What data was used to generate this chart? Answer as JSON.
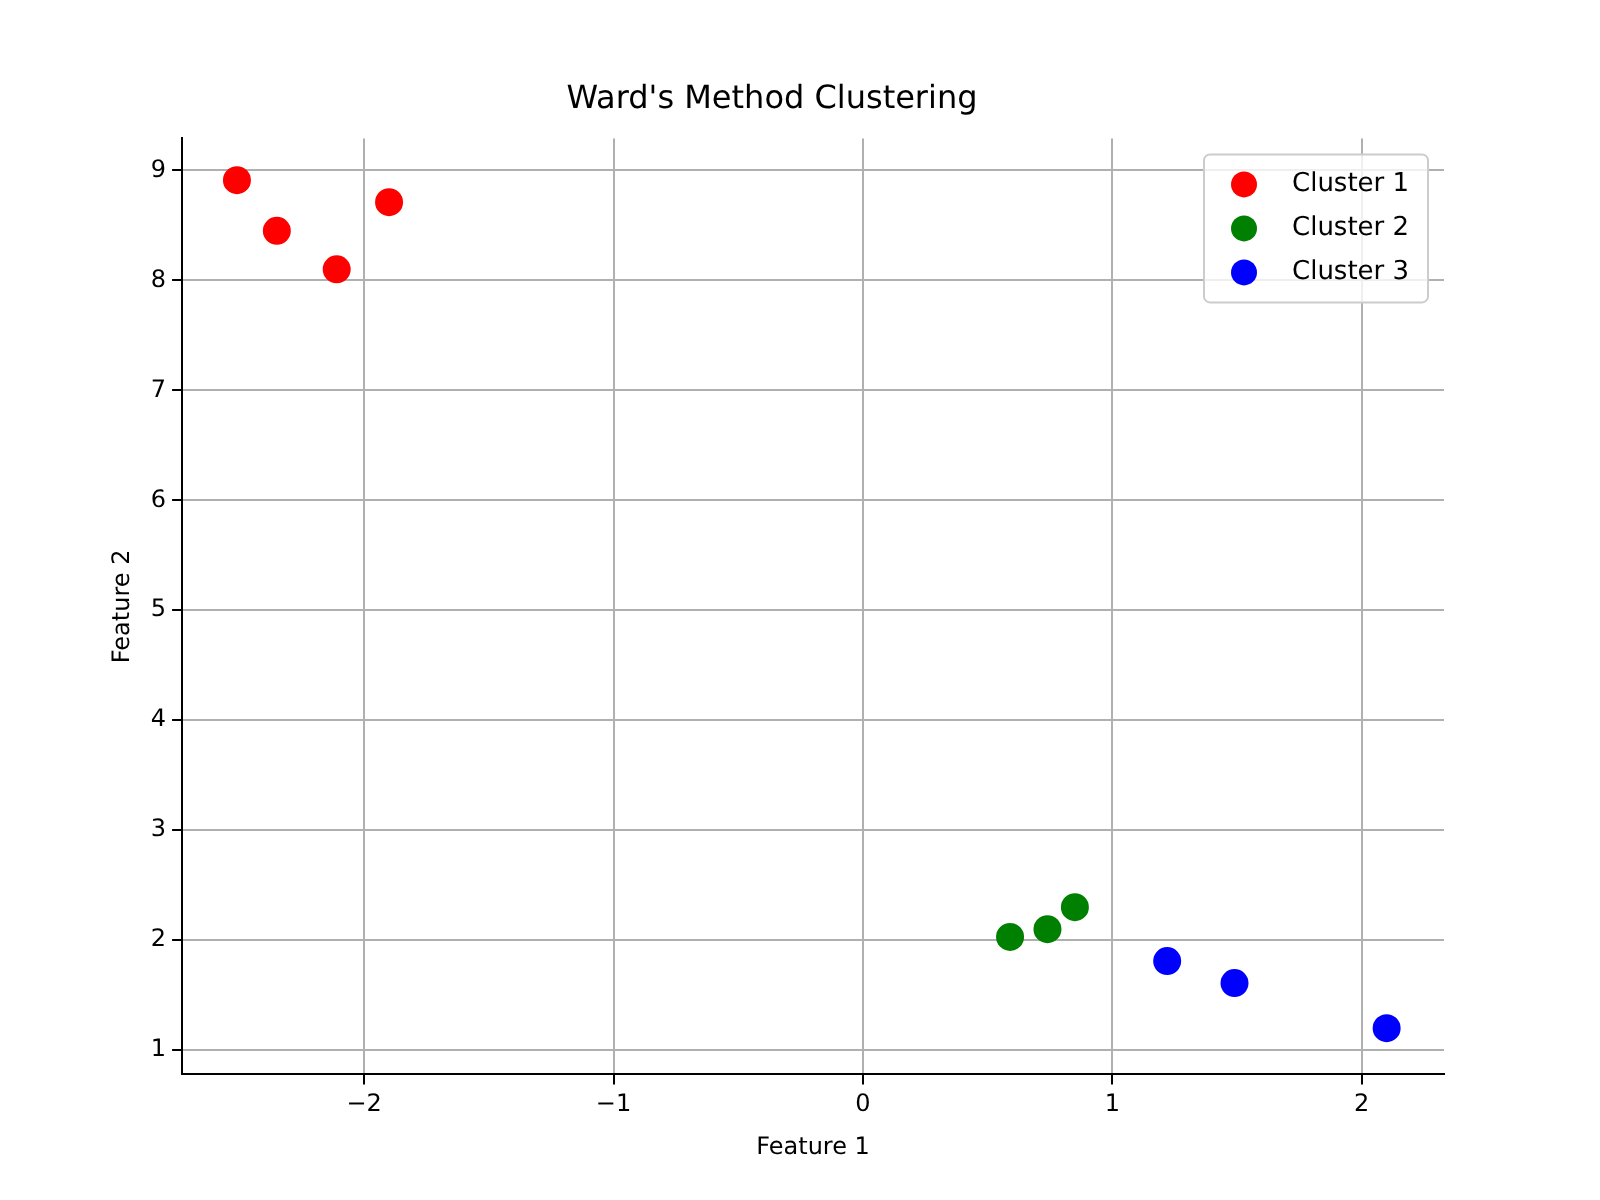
{
  "chart_data": {
    "type": "scatter",
    "title": "Ward's Method Clustering",
    "xlabel": "Feature 1",
    "ylabel": "Feature 2",
    "series": [
      {
        "name": "Cluster 1",
        "color": "#ff0000",
        "x": [
          -2.51,
          -2.35,
          -2.11,
          -1.9
        ],
        "values": [
          8.91,
          8.45,
          8.1,
          8.71
        ]
      },
      {
        "name": "Cluster 2",
        "color": "#008000",
        "x": [
          0.59,
          0.74,
          0.85
        ],
        "values": [
          2.03,
          2.1,
          2.3
        ]
      },
      {
        "name": "Cluster 3",
        "color": "#0000ff",
        "x": [
          1.22,
          1.49,
          2.1
        ],
        "values": [
          1.81,
          1.61,
          1.2
        ]
      }
    ],
    "xlim": [
      -2.73,
      2.33
    ],
    "ylim": [
      0.78,
      9.29
    ],
    "xticks": [
      -2,
      -1,
      0,
      1,
      2
    ],
    "yticks": [
      1,
      2,
      3,
      4,
      5,
      6,
      7,
      8,
      9
    ],
    "grid": true,
    "legend": "top right",
    "marker": "circle"
  }
}
